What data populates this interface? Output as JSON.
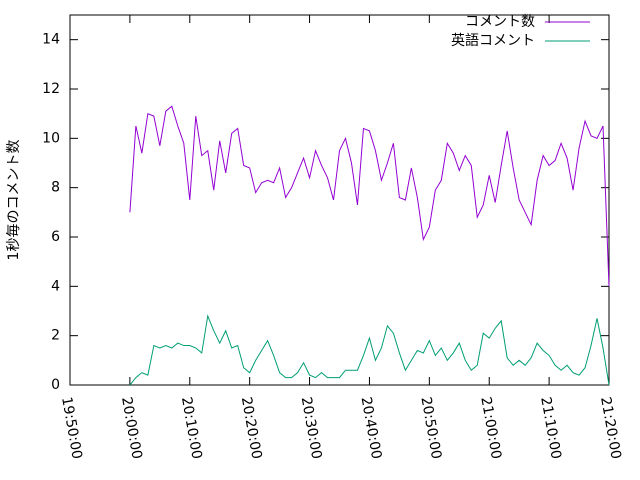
{
  "chart_data": {
    "type": "line",
    "ylabel": "1秒毎のコメント数",
    "x": [
      "20:00:00",
      "20:01:00",
      "20:02:00",
      "20:03:00",
      "20:04:00",
      "20:05:00",
      "20:06:00",
      "20:07:00",
      "20:08:00",
      "20:09:00",
      "20:10:00",
      "20:11:00",
      "20:12:00",
      "20:13:00",
      "20:14:00",
      "20:15:00",
      "20:16:00",
      "20:17:00",
      "20:18:00",
      "20:19:00",
      "20:20:00",
      "20:21:00",
      "20:22:00",
      "20:23:00",
      "20:24:00",
      "20:25:00",
      "20:26:00",
      "20:27:00",
      "20:28:00",
      "20:29:00",
      "20:30:00",
      "20:31:00",
      "20:32:00",
      "20:33:00",
      "20:34:00",
      "20:35:00",
      "20:36:00",
      "20:37:00",
      "20:38:00",
      "20:39:00",
      "20:40:00",
      "20:41:00",
      "20:42:00",
      "20:43:00",
      "20:44:00",
      "20:45:00",
      "20:46:00",
      "20:47:00",
      "20:48:00",
      "20:49:00",
      "20:50:00",
      "20:51:00",
      "20:52:00",
      "20:53:00",
      "20:54:00",
      "20:55:00",
      "20:56:00",
      "20:57:00",
      "20:58:00",
      "20:59:00",
      "21:00:00",
      "21:01:00",
      "21:02:00",
      "21:03:00",
      "21:04:00",
      "21:05:00",
      "21:06:00",
      "21:07:00",
      "21:08:00",
      "21:09:00",
      "21:10:00",
      "21:11:00",
      "21:12:00",
      "21:13:00",
      "21:14:00",
      "21:15:00",
      "21:16:00",
      "21:17:00",
      "21:18:00",
      "21:19:00",
      "21:20:00"
    ],
    "series": [
      {
        "name": "コメント数",
        "color": "#9400d3",
        "values": [
          7.0,
          10.5,
          9.4,
          11.0,
          10.9,
          9.7,
          11.1,
          11.3,
          10.5,
          9.8,
          7.5,
          10.9,
          9.3,
          9.5,
          7.9,
          9.9,
          8.6,
          10.2,
          10.4,
          8.9,
          8.8,
          7.8,
          8.2,
          8.3,
          8.2,
          8.8,
          7.6,
          8.0,
          8.6,
          9.2,
          8.4,
          9.5,
          8.9,
          8.4,
          7.5,
          9.5,
          10.0,
          9.0,
          7.3,
          10.4,
          10.3,
          9.5,
          8.3,
          9.0,
          9.8,
          7.6,
          7.5,
          8.8,
          7.6,
          5.9,
          6.4,
          7.9,
          8.3,
          9.8,
          9.4,
          8.7,
          9.3,
          8.9,
          6.8,
          7.3,
          8.5,
          7.4,
          8.9,
          10.3,
          8.8,
          7.5,
          7.0,
          6.5,
          8.3,
          9.3,
          8.9,
          9.1,
          9.8,
          9.2,
          7.9,
          9.6,
          10.7,
          10.1,
          10.0,
          10.5,
          4.0
        ]
      },
      {
        "name": "英語コメント",
        "color": "#009e73",
        "values": [
          0.0,
          0.3,
          0.5,
          0.4,
          1.6,
          1.5,
          1.6,
          1.5,
          1.7,
          1.6,
          1.6,
          1.5,
          1.3,
          2.8,
          2.2,
          1.7,
          2.2,
          1.5,
          1.6,
          0.7,
          0.5,
          1.0,
          1.4,
          1.8,
          1.2,
          0.5,
          0.3,
          0.3,
          0.5,
          0.9,
          0.4,
          0.3,
          0.5,
          0.3,
          0.3,
          0.3,
          0.6,
          0.6,
          0.6,
          1.2,
          1.9,
          1.0,
          1.5,
          2.4,
          2.1,
          1.3,
          0.6,
          1.0,
          1.4,
          1.3,
          1.8,
          1.2,
          1.5,
          1.0,
          1.3,
          1.7,
          1.0,
          0.6,
          0.8,
          2.1,
          1.9,
          2.3,
          2.6,
          1.1,
          0.8,
          1.0,
          0.8,
          1.1,
          1.7,
          1.4,
          1.2,
          0.8,
          0.6,
          0.8,
          0.5,
          0.4,
          0.7,
          1.6,
          2.7,
          1.5,
          0.0
        ]
      }
    ],
    "xlim": [
      "19:50:00",
      "21:20:00"
    ],
    "xticks": [
      "19:50:00",
      "20:00:00",
      "20:10:00",
      "20:20:00",
      "20:30:00",
      "20:40:00",
      "20:50:00",
      "21:00:00",
      "21:10:00",
      "21:20:00"
    ],
    "ylim": [
      0,
      15
    ],
    "yticks": [
      0,
      2,
      4,
      6,
      8,
      10,
      12,
      14
    ],
    "legend": "top-right"
  }
}
